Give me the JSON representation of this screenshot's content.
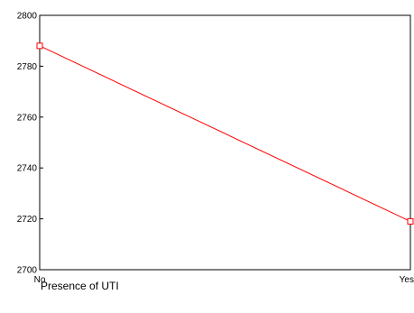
{
  "chart_data": {
    "type": "line",
    "title": "",
    "xlabel": "Presence of UTI",
    "ylabel": "",
    "categories": [
      "No",
      "Yes"
    ],
    "series": [
      {
        "values": [
          2788,
          2719
        ],
        "color": "#ff0000",
        "marker": "square-open"
      }
    ],
    "ylim": [
      2700,
      2800
    ],
    "yticks": [
      2700,
      2720,
      2740,
      2760,
      2780,
      2800
    ],
    "grid": false,
    "legend": "none"
  }
}
